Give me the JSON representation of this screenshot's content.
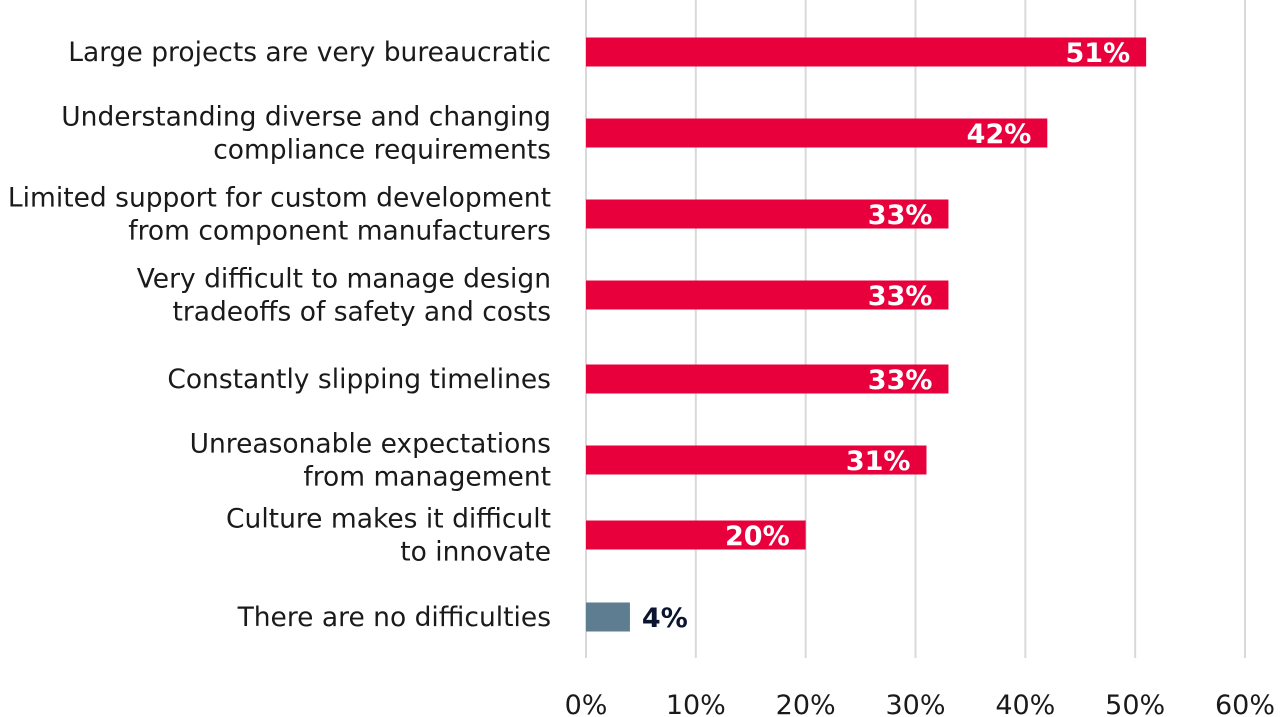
{
  "chart_data": {
    "type": "bar",
    "orientation": "horizontal",
    "title": "",
    "xlabel": "",
    "ylabel": "",
    "categories": [
      [
        "Large projects are very bureaucratic"
      ],
      [
        "Understanding diverse and changing",
        "compliance requirements"
      ],
      [
        "Limited support for custom development",
        "from component manufacturers"
      ],
      [
        "Very difficult to manage design",
        "tradeoffs of safety and costs"
      ],
      [
        "Constantly slipping timelines"
      ],
      [
        "Unreasonable expectations",
        "from management"
      ],
      [
        "Culture makes it difficult",
        "to innovate"
      ],
      [
        "There are no difficulties"
      ]
    ],
    "values": [
      51,
      42,
      33,
      33,
      33,
      31,
      20,
      4
    ],
    "value_labels": [
      "51%",
      "42%",
      "33%",
      "33%",
      "33%",
      "31%",
      "20%",
      "4%"
    ],
    "xlim": [
      0,
      60
    ],
    "xticks": [
      "0%",
      "10%",
      "20%",
      "30%",
      "40%",
      "50%",
      "60%"
    ],
    "grid": true,
    "legend": "none",
    "colors": {
      "bar": "#e8003d",
      "bar_highlight": "#5e7d90",
      "grid": "#d9d9d9"
    },
    "highlight_index": 7
  }
}
